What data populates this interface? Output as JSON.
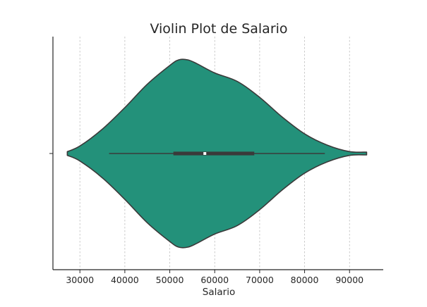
{
  "chart_data": {
    "type": "violin",
    "title": "Violin Plot de Salario",
    "xlabel": "Salario",
    "ylabel": "",
    "xlim": [
      24000,
      97500
    ],
    "xticks": [
      30000,
      40000,
      50000,
      60000,
      70000,
      80000,
      90000
    ],
    "xtick_labels": [
      "30000",
      "40000",
      "50000",
      "60000",
      "70000",
      "80000",
      "90000"
    ],
    "grid": "x-dashed",
    "fill_color": "#23917a",
    "outline_color": "#3a3a3a",
    "density": {
      "x": [
        27200,
        30000,
        35000,
        40000,
        45000,
        50000,
        52000,
        54000,
        56000,
        60000,
        65000,
        70000,
        75000,
        80000,
        85000,
        90000,
        93800
      ],
      "width": [
        0.02,
        0.08,
        0.26,
        0.49,
        0.74,
        0.94,
        1.0,
        1.0,
        0.96,
        0.86,
        0.77,
        0.6,
        0.39,
        0.21,
        0.09,
        0.02,
        0.015
      ]
    },
    "box": {
      "whisker_low": 36500,
      "q1": 50800,
      "median": 57800,
      "q3": 68800,
      "whisker_high": 84500
    }
  }
}
